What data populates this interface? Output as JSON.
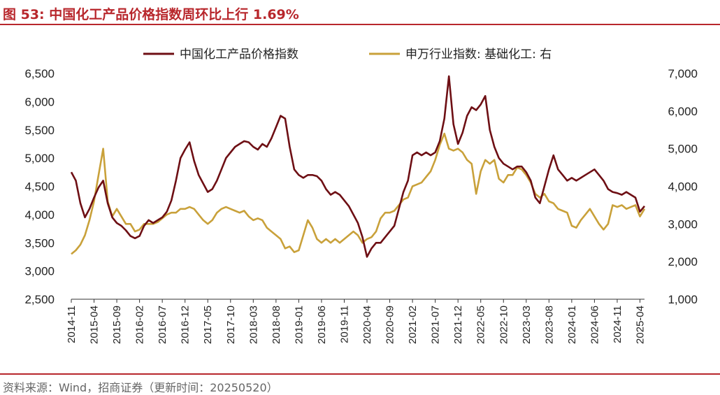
{
  "header": {
    "title": "图 53:  中国化工产品价格指数周环比上行 1.69%"
  },
  "footer": {
    "source": "资料来源：Wind，招商证券（更新时间：20250520）"
  },
  "colors": {
    "accent": "#b8272c",
    "left_series": "#6e0f14",
    "right_series": "#c9a13a"
  },
  "chart_data": {
    "type": "line",
    "title": "中国化工产品价格指数周环比上行 1.69%",
    "x_ticks": [
      "2014-11",
      "2015-04",
      "2015-09",
      "2016-02",
      "2016-07",
      "2016-12",
      "2017-05",
      "2017-10",
      "2018-03",
      "2018-08",
      "2019-01",
      "2019-06",
      "2019-11",
      "2020-04",
      "2020-09",
      "2021-02",
      "2021-07",
      "2021-12",
      "2022-05",
      "2022-10",
      "2023-03",
      "2023-08",
      "2024-01",
      "2024-06",
      "2024-11",
      "2025-04"
    ],
    "y_left": {
      "min": 2500,
      "max": 6500,
      "ticks": [
        "2,500",
        "3,000",
        "3,500",
        "4,000",
        "4,500",
        "5,000",
        "5,500",
        "6,000",
        "6,500"
      ]
    },
    "y_right": {
      "min": 1000,
      "max": 7000,
      "ticks": [
        "1,000",
        "2,000",
        "3,000",
        "4,000",
        "5,000",
        "6,000",
        "7,000"
      ]
    },
    "legend_position": "top",
    "series": [
      {
        "name": "中国化工产品价格指数",
        "axis": "left",
        "points": [
          [
            "2014-11",
            4750
          ],
          [
            "2014-12",
            4600
          ],
          [
            "2015-01",
            4200
          ],
          [
            "2015-02",
            3950
          ],
          [
            "2015-03",
            4100
          ],
          [
            "2015-04",
            4300
          ],
          [
            "2015-05",
            4480
          ],
          [
            "2015-06",
            4600
          ],
          [
            "2015-07",
            4200
          ],
          [
            "2015-08",
            3950
          ],
          [
            "2015-09",
            3850
          ],
          [
            "2015-10",
            3800
          ],
          [
            "2015-11",
            3720
          ],
          [
            "2015-12",
            3620
          ],
          [
            "2016-01",
            3580
          ],
          [
            "2016-02",
            3620
          ],
          [
            "2016-03",
            3800
          ],
          [
            "2016-04",
            3900
          ],
          [
            "2016-05",
            3850
          ],
          [
            "2016-06",
            3900
          ],
          [
            "2016-07",
            3950
          ],
          [
            "2016-08",
            4050
          ],
          [
            "2016-09",
            4250
          ],
          [
            "2016-10",
            4600
          ],
          [
            "2016-11",
            5000
          ],
          [
            "2016-12",
            5150
          ],
          [
            "2017-01",
            5280
          ],
          [
            "2017-02",
            4950
          ],
          [
            "2017-03",
            4700
          ],
          [
            "2017-04",
            4550
          ],
          [
            "2017-05",
            4400
          ],
          [
            "2017-06",
            4450
          ],
          [
            "2017-07",
            4600
          ],
          [
            "2017-08",
            4800
          ],
          [
            "2017-09",
            5000
          ],
          [
            "2017-10",
            5100
          ],
          [
            "2017-11",
            5200
          ],
          [
            "2017-12",
            5250
          ],
          [
            "2018-01",
            5300
          ],
          [
            "2018-02",
            5280
          ],
          [
            "2018-03",
            5200
          ],
          [
            "2018-04",
            5150
          ],
          [
            "2018-05",
            5250
          ],
          [
            "2018-06",
            5200
          ],
          [
            "2018-07",
            5350
          ],
          [
            "2018-08",
            5550
          ],
          [
            "2018-09",
            5750
          ],
          [
            "2018-10",
            5700
          ],
          [
            "2018-11",
            5200
          ],
          [
            "2018-12",
            4800
          ],
          [
            "2019-01",
            4700
          ],
          [
            "2019-02",
            4650
          ],
          [
            "2019-03",
            4700
          ],
          [
            "2019-04",
            4700
          ],
          [
            "2019-05",
            4680
          ],
          [
            "2019-06",
            4600
          ],
          [
            "2019-07",
            4450
          ],
          [
            "2019-08",
            4350
          ],
          [
            "2019-09",
            4400
          ],
          [
            "2019-10",
            4350
          ],
          [
            "2019-11",
            4250
          ],
          [
            "2019-12",
            4150
          ],
          [
            "2020-01",
            4000
          ],
          [
            "2020-02",
            3850
          ],
          [
            "2020-03",
            3600
          ],
          [
            "2020-04",
            3250
          ],
          [
            "2020-05",
            3400
          ],
          [
            "2020-06",
            3500
          ],
          [
            "2020-07",
            3500
          ],
          [
            "2020-08",
            3600
          ],
          [
            "2020-09",
            3700
          ],
          [
            "2020-10",
            3800
          ],
          [
            "2020-11",
            4100
          ],
          [
            "2020-12",
            4400
          ],
          [
            "2021-01",
            4600
          ],
          [
            "2021-02",
            5050
          ],
          [
            "2021-03",
            5100
          ],
          [
            "2021-04",
            5050
          ],
          [
            "2021-05",
            5100
          ],
          [
            "2021-06",
            5050
          ],
          [
            "2021-07",
            5100
          ],
          [
            "2021-08",
            5300
          ],
          [
            "2021-09",
            5700
          ],
          [
            "2021-10",
            6450
          ],
          [
            "2021-11",
            5600
          ],
          [
            "2021-12",
            5250
          ],
          [
            "2022-01",
            5450
          ],
          [
            "2022-02",
            5750
          ],
          [
            "2022-03",
            5900
          ],
          [
            "2022-04",
            5850
          ],
          [
            "2022-05",
            5950
          ],
          [
            "2022-06",
            6100
          ],
          [
            "2022-07",
            5500
          ],
          [
            "2022-08",
            5200
          ],
          [
            "2022-09",
            5000
          ],
          [
            "2022-10",
            4900
          ],
          [
            "2022-11",
            4850
          ],
          [
            "2022-12",
            4800
          ],
          [
            "2023-01",
            4850
          ],
          [
            "2023-02",
            4850
          ],
          [
            "2023-03",
            4750
          ],
          [
            "2023-04",
            4600
          ],
          [
            "2023-05",
            4300
          ],
          [
            "2023-06",
            4200
          ],
          [
            "2023-07",
            4500
          ],
          [
            "2023-08",
            4800
          ],
          [
            "2023-09",
            5050
          ],
          [
            "2023-10",
            4800
          ],
          [
            "2023-11",
            4700
          ],
          [
            "2023-12",
            4600
          ],
          [
            "2024-01",
            4650
          ],
          [
            "2024-02",
            4600
          ],
          [
            "2024-03",
            4650
          ],
          [
            "2024-04",
            4700
          ],
          [
            "2024-05",
            4750
          ],
          [
            "2024-06",
            4800
          ],
          [
            "2024-07",
            4700
          ],
          [
            "2024-08",
            4600
          ],
          [
            "2024-09",
            4450
          ],
          [
            "2024-10",
            4400
          ],
          [
            "2024-11",
            4380
          ],
          [
            "2024-12",
            4350
          ],
          [
            "2025-01",
            4400
          ],
          [
            "2025-02",
            4350
          ],
          [
            "2025-03",
            4300
          ],
          [
            "2025-04",
            4050
          ],
          [
            "2025-05",
            4150
          ]
        ]
      },
      {
        "name": "申万行业指数: 基础化工: 右",
        "axis": "right",
        "points": [
          [
            "2014-11",
            2200
          ],
          [
            "2014-12",
            2300
          ],
          [
            "2015-01",
            2450
          ],
          [
            "2015-02",
            2700
          ],
          [
            "2015-03",
            3100
          ],
          [
            "2015-04",
            3600
          ],
          [
            "2015-05",
            4300
          ],
          [
            "2015-06",
            5000
          ],
          [
            "2015-07",
            3600
          ],
          [
            "2015-08",
            3200
          ],
          [
            "2015-09",
            3400
          ],
          [
            "2015-10",
            3200
          ],
          [
            "2015-11",
            3000
          ],
          [
            "2015-12",
            3000
          ],
          [
            "2016-01",
            2800
          ],
          [
            "2016-02",
            2850
          ],
          [
            "2016-03",
            3000
          ],
          [
            "2016-04",
            3000
          ],
          [
            "2016-05",
            3000
          ],
          [
            "2016-06",
            3050
          ],
          [
            "2016-07",
            3150
          ],
          [
            "2016-08",
            3250
          ],
          [
            "2016-09",
            3300
          ],
          [
            "2016-10",
            3300
          ],
          [
            "2016-11",
            3400
          ],
          [
            "2016-12",
            3400
          ],
          [
            "2017-01",
            3450
          ],
          [
            "2017-02",
            3400
          ],
          [
            "2017-03",
            3250
          ],
          [
            "2017-04",
            3100
          ],
          [
            "2017-05",
            3000
          ],
          [
            "2017-06",
            3100
          ],
          [
            "2017-07",
            3300
          ],
          [
            "2017-08",
            3400
          ],
          [
            "2017-09",
            3450
          ],
          [
            "2017-10",
            3400
          ],
          [
            "2017-11",
            3350
          ],
          [
            "2017-12",
            3300
          ],
          [
            "2018-01",
            3350
          ],
          [
            "2018-02",
            3200
          ],
          [
            "2018-03",
            3100
          ],
          [
            "2018-04",
            3150
          ],
          [
            "2018-05",
            3100
          ],
          [
            "2018-06",
            2900
          ],
          [
            "2018-07",
            2800
          ],
          [
            "2018-08",
            2700
          ],
          [
            "2018-09",
            2600
          ],
          [
            "2018-10",
            2350
          ],
          [
            "2018-11",
            2400
          ],
          [
            "2018-12",
            2250
          ],
          [
            "2019-01",
            2300
          ],
          [
            "2019-02",
            2700
          ],
          [
            "2019-03",
            3100
          ],
          [
            "2019-04",
            2900
          ],
          [
            "2019-05",
            2600
          ],
          [
            "2019-06",
            2500
          ],
          [
            "2019-07",
            2600
          ],
          [
            "2019-08",
            2500
          ],
          [
            "2019-09",
            2600
          ],
          [
            "2019-10",
            2500
          ],
          [
            "2019-11",
            2600
          ],
          [
            "2019-12",
            2700
          ],
          [
            "2020-01",
            2800
          ],
          [
            "2020-02",
            2700
          ],
          [
            "2020-03",
            2500
          ],
          [
            "2020-04",
            2600
          ],
          [
            "2020-05",
            2650
          ],
          [
            "2020-06",
            2800
          ],
          [
            "2020-07",
            3150
          ],
          [
            "2020-08",
            3300
          ],
          [
            "2020-09",
            3300
          ],
          [
            "2020-10",
            3350
          ],
          [
            "2020-11",
            3500
          ],
          [
            "2020-12",
            3650
          ],
          [
            "2021-01",
            3700
          ],
          [
            "2021-02",
            4000
          ],
          [
            "2021-03",
            4050
          ],
          [
            "2021-04",
            4100
          ],
          [
            "2021-05",
            4250
          ],
          [
            "2021-06",
            4400
          ],
          [
            "2021-07",
            4700
          ],
          [
            "2021-08",
            5100
          ],
          [
            "2021-09",
            5400
          ],
          [
            "2021-10",
            5000
          ],
          [
            "2021-11",
            4950
          ],
          [
            "2021-12",
            5000
          ],
          [
            "2022-01",
            4900
          ],
          [
            "2022-02",
            4700
          ],
          [
            "2022-03",
            4600
          ],
          [
            "2022-04",
            3800
          ],
          [
            "2022-05",
            4400
          ],
          [
            "2022-06",
            4700
          ],
          [
            "2022-07",
            4600
          ],
          [
            "2022-08",
            4700
          ],
          [
            "2022-09",
            4200
          ],
          [
            "2022-10",
            4100
          ],
          [
            "2022-11",
            4300
          ],
          [
            "2022-12",
            4300
          ],
          [
            "2023-01",
            4500
          ],
          [
            "2023-02",
            4450
          ],
          [
            "2023-03",
            4300
          ],
          [
            "2023-04",
            4100
          ],
          [
            "2023-05",
            3800
          ],
          [
            "2023-06",
            3700
          ],
          [
            "2023-07",
            3800
          ],
          [
            "2023-08",
            3600
          ],
          [
            "2023-09",
            3550
          ],
          [
            "2023-10",
            3400
          ],
          [
            "2023-11",
            3350
          ],
          [
            "2023-12",
            3300
          ],
          [
            "2024-01",
            2950
          ],
          [
            "2024-02",
            2900
          ],
          [
            "2024-03",
            3100
          ],
          [
            "2024-04",
            3250
          ],
          [
            "2024-05",
            3400
          ],
          [
            "2024-06",
            3200
          ],
          [
            "2024-07",
            3000
          ],
          [
            "2024-08",
            2850
          ],
          [
            "2024-09",
            3000
          ],
          [
            "2024-10",
            3500
          ],
          [
            "2024-11",
            3450
          ],
          [
            "2024-12",
            3500
          ],
          [
            "2025-01",
            3400
          ],
          [
            "2025-02",
            3450
          ],
          [
            "2025-03",
            3500
          ],
          [
            "2025-04",
            3200
          ],
          [
            "2025-05",
            3400
          ]
        ]
      }
    ]
  }
}
